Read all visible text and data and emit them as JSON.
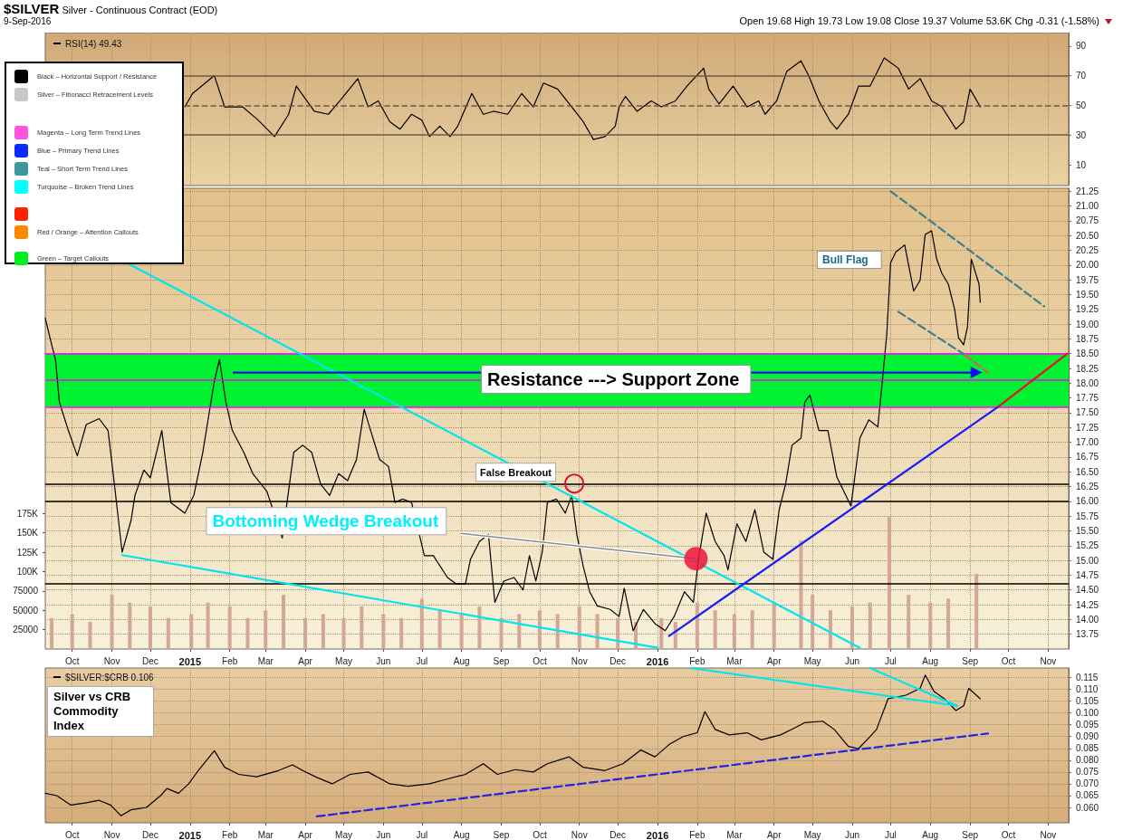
{
  "chart_data": [
    {
      "type": "line",
      "title": "$SILVER Silver - Continuous Contract (EOD)",
      "subtitle": "9-Sep-2016",
      "annotations": [
        "Open 19.68 High 19.73 Low 19.08 Close 19.37 Volume 53.6K Chg -0.31 (-1.58%)"
      ],
      "series": [
        {
          "name": "RSI(14) 49.43",
          "color": "#000000",
          "x": [
            "2014-12-28",
            "2015-01-03",
            "2015-01-20",
            "2015-01-28",
            "2015-02-11",
            "2015-02-22",
            "2015-03-08",
            "2015-03-19",
            "2015-03-25",
            "2015-04-08",
            "2015-04-19",
            "2015-04-28",
            "2015-05-12",
            "2015-05-20",
            "2015-05-28",
            "2015-06-06",
            "2015-06-14",
            "2015-06-23",
            "2015-07-01",
            "2015-07-07",
            "2015-07-15",
            "2015-07-23",
            "2015-07-29",
            "2015-08-09",
            "2015-08-18",
            "2015-08-26",
            "2015-09-06",
            "2015-09-17",
            "2015-09-26",
            "2015-10-04",
            "2015-10-15",
            "2015-10-26",
            "2015-11-04",
            "2015-11-12",
            "2015-11-21",
            "2015-11-29",
            "2015-12-02",
            "2015-12-07",
            "2015-12-16",
            "2015-12-27",
            "2016-01-04",
            "2016-01-15",
            "2016-01-24",
            "2016-02-06",
            "2016-02-10",
            "2016-02-18",
            "2016-02-29",
            "2016-03-11",
            "2016-03-20",
            "2016-03-25",
            "2016-04-03",
            "2016-04-11",
            "2016-04-22",
            "2016-04-28",
            "2016-05-06",
            "2016-05-15",
            "2016-05-20",
            "2016-05-29",
            "2016-06-06",
            "2016-06-15",
            "2016-06-26",
            "2016-07-07",
            "2016-07-15",
            "2016-07-24",
            "2016-08-02",
            "2016-08-10",
            "2016-08-21",
            "2016-08-27",
            "2016-09-01",
            "2016-09-09"
          ],
          "values": [
            49,
            58,
            70,
            49,
            49,
            41,
            29,
            44,
            63,
            46,
            44,
            53,
            68,
            49,
            53,
            39,
            34,
            44,
            40,
            29,
            36,
            29,
            36,
            58,
            44,
            46,
            44,
            58,
            49,
            65,
            61,
            49,
            39,
            27,
            29,
            36,
            49,
            56,
            46,
            53,
            49,
            53,
            63,
            75,
            61,
            51,
            63,
            49,
            53,
            44,
            53,
            73,
            80,
            70,
            53,
            39,
            34,
            44,
            63,
            63,
            82,
            75,
            61,
            68,
            53,
            49,
            34,
            39,
            61,
            49
          ]
        }
      ],
      "xlim": [
        "2014-09-10",
        "2016-11-17"
      ],
      "xticks": [
        {
          "value": "2014-10-01",
          "label": null
        },
        {
          "value": "2014-11-01",
          "label": null
        },
        {
          "value": "2014-12-01",
          "label": null
        },
        {
          "value": "2015-01-01",
          "label": null
        },
        {
          "value": "2015-02-01",
          "label": null
        },
        {
          "value": "2015-03-01",
          "label": null
        },
        {
          "value": "2015-04-01",
          "label": null
        },
        {
          "value": "2015-05-01",
          "label": null
        },
        {
          "value": "2015-06-01",
          "label": null
        },
        {
          "value": "2015-07-01",
          "label": null
        },
        {
          "value": "2015-08-01",
          "label": null
        },
        {
          "value": "2015-09-01",
          "label": null
        },
        {
          "value": "2015-10-01",
          "label": null
        },
        {
          "value": "2015-11-01",
          "label": null
        },
        {
          "value": "2015-12-01",
          "label": null
        },
        {
          "value": "2016-01-01",
          "label": null
        },
        {
          "value": "2016-02-01",
          "label": null
        },
        {
          "value": "2016-03-01",
          "label": null
        },
        {
          "value": "2016-04-01",
          "label": null
        },
        {
          "value": "2016-05-01",
          "label": null
        },
        {
          "value": "2016-06-01",
          "label": null
        },
        {
          "value": "2016-07-01",
          "label": null
        },
        {
          "value": "2016-08-01",
          "label": null
        },
        {
          "value": "2016-09-01",
          "label": null
        },
        {
          "value": "2016-10-01",
          "label": null
        },
        {
          "value": "2016-11-01",
          "label": null
        }
      ],
      "ylim": [
        -4,
        99
      ],
      "yticks": [
        10,
        30,
        50,
        70,
        90
      ],
      "ref_lines": [
        {
          "axis": "y",
          "value": 70,
          "color": "#6a5a48"
        },
        {
          "axis": "y",
          "value": 30,
          "color": "#6a5a48"
        },
        {
          "axis": "y",
          "value": 50,
          "color": "#6a5a48",
          "line_style": "dashed"
        }
      ],
      "grid": "x",
      "legend": "top left",
      "marker": "none",
      "tick_labels": "y"
    },
    {
      "type": "line",
      "annotations": [
        "Resistance ---> Support Zone",
        "Bull Flag",
        {
          "text": "False Breakout",
          "x": "2015-10-28",
          "y": 16.3
        },
        {
          "text": "Bottoming Wedge Breakout",
          "x": "2016-01-31",
          "y": 15.03
        }
      ],
      "series": [
        {
          "color": "#000000",
          "x": [
            "2014-09-10",
            "2014-09-15",
            "2014-09-18",
            "2014-09-21",
            "2014-09-28",
            "2014-10-05",
            "2014-10-12",
            "2014-10-22",
            "2014-10-29",
            "2014-11-02",
            "2014-11-09",
            "2014-11-16",
            "2014-11-19",
            "2014-11-26",
            "2014-12-01",
            "2014-12-10",
            "2014-12-17",
            "2014-12-28",
            "2015-01-04",
            "2015-01-11",
            "2015-01-20",
            "2015-01-24",
            "2015-01-29",
            "2015-02-03",
            "2015-02-12",
            "2015-02-19",
            "2015-03-02",
            "2015-03-14",
            "2015-03-23",
            "2015-03-30",
            "2015-04-06",
            "2015-04-13",
            "2015-04-20",
            "2015-04-27",
            "2015-05-04",
            "2015-05-11",
            "2015-05-17",
            "2015-05-22",
            "2015-05-29",
            "2015-06-05",
            "2015-06-10",
            "2015-06-16",
            "2015-06-23",
            "2015-07-03",
            "2015-07-10",
            "2015-07-21",
            "2015-07-28",
            "2015-08-04",
            "2015-08-08",
            "2015-08-15",
            "2015-08-22",
            "2015-08-27",
            "2015-09-03",
            "2015-09-11",
            "2015-09-18",
            "2015-09-23",
            "2015-09-28",
            "2015-10-03",
            "2015-10-07",
            "2015-10-14",
            "2015-10-21",
            "2015-10-26",
            "2015-10-30",
            "2015-11-04",
            "2015-11-09",
            "2015-11-15",
            "2015-11-25",
            "2015-12-02",
            "2015-12-06",
            "2015-12-13",
            "2015-12-21",
            "2015-12-30",
            "2016-01-07",
            "2016-01-14",
            "2016-01-22",
            "2016-01-29",
            "2016-02-02",
            "2016-02-08",
            "2016-02-15",
            "2016-02-22",
            "2016-02-25",
            "2016-03-03",
            "2016-03-10",
            "2016-03-17",
            "2016-03-24",
            "2016-03-31",
            "2016-04-05",
            "2016-04-10",
            "2016-04-15",
            "2016-04-22",
            "2016-04-25",
            "2016-04-29",
            "2016-05-06",
            "2016-05-13",
            "2016-05-20",
            "2016-05-27",
            "2016-05-31",
            "2016-06-03",
            "2016-06-07",
            "2016-06-14",
            "2016-06-21",
            "2016-06-24",
            "2016-06-28",
            "2016-07-01",
            "2016-07-05",
            "2016-07-12",
            "2016-07-19",
            "2016-07-24",
            "2016-07-28",
            "2016-08-02",
            "2016-08-06",
            "2016-08-10",
            "2016-08-15",
            "2016-08-20",
            "2016-08-23",
            "2016-08-27",
            "2016-08-30",
            "2016-09-02",
            "2016-09-08",
            "2016-09-09"
          ],
          "values": [
            19.1,
            18.65,
            18.4,
            17.68,
            17.2,
            16.77,
            17.3,
            17.4,
            17.2,
            16.47,
            15.14,
            15.68,
            16.1,
            16.53,
            16.4,
            17.2,
            15.98,
            15.8,
            16.1,
            16.83,
            18.04,
            18.4,
            17.68,
            17.2,
            16.83,
            16.47,
            16.17,
            15.38,
            16.83,
            16.95,
            16.83,
            16.29,
            16.1,
            16.47,
            16.35,
            16.71,
            17.56,
            17.2,
            16.71,
            16.59,
            15.98,
            16.04,
            15.98,
            15.08,
            15.08,
            14.71,
            14.6,
            14.6,
            15.02,
            15.32,
            15.44,
            14.29,
            14.65,
            14.71,
            14.5,
            15.08,
            14.65,
            15.14,
            15.98,
            16.04,
            15.8,
            16.1,
            15.44,
            14.9,
            14.47,
            14.23,
            14.17,
            14.05,
            14.53,
            13.81,
            14.17,
            13.93,
            13.81,
            14.05,
            14.47,
            14.29,
            15.02,
            15.8,
            15.32,
            15.08,
            14.84,
            15.62,
            15.32,
            15.86,
            15.14,
            15.02,
            15.86,
            16.29,
            16.95,
            17.07,
            17.68,
            17.8,
            17.2,
            17.2,
            16.41,
            16.1,
            15.92,
            16.41,
            17.07,
            17.38,
            17.26,
            17.92,
            18.83,
            20.04,
            20.22,
            20.34,
            19.56,
            19.74,
            20.52,
            20.58,
            20.1,
            19.86,
            19.68,
            19.25,
            18.77,
            18.65,
            18.95,
            20.1,
            19.68,
            19.37
          ]
        },
        {
          "type": "bar",
          "axis": "y2",
          "color": "#d2a796",
          "x": [
            "2014-09-15",
            "2014-10-01",
            "2014-10-15",
            "2014-11-01",
            "2014-11-15",
            "2014-12-01",
            "2014-12-15",
            "2015-01-02",
            "2015-01-15",
            "2015-02-01",
            "2015-02-15",
            "2015-03-01",
            "2015-03-15",
            "2015-04-01",
            "2015-04-15",
            "2015-05-01",
            "2015-05-15",
            "2015-06-01",
            "2015-06-15",
            "2015-07-01",
            "2015-07-15",
            "2015-08-01",
            "2015-08-15",
            "2015-09-01",
            "2015-09-15",
            "2015-10-01",
            "2015-10-15",
            "2015-11-01",
            "2015-11-15",
            "2015-12-01",
            "2015-12-15",
            "2016-01-04",
            "2016-01-15",
            "2016-02-01",
            "2016-02-15",
            "2016-03-01",
            "2016-03-15",
            "2016-04-01",
            "2016-04-22",
            "2016-05-01",
            "2016-05-15",
            "2016-06-01",
            "2016-06-15",
            "2016-06-30",
            "2016-07-15",
            "2016-08-01",
            "2016-08-15",
            "2016-09-06"
          ],
          "values": [
            40000,
            45000,
            35000,
            70000,
            60000,
            55000,
            40000,
            45000,
            60000,
            55000,
            40000,
            50000,
            70000,
            40000,
            45000,
            40000,
            55000,
            45000,
            40000,
            65000,
            50000,
            45000,
            55000,
            40000,
            45000,
            50000,
            45000,
            55000,
            45000,
            40000,
            35000,
            40000,
            35000,
            60000,
            50000,
            45000,
            50000,
            60000,
            140000,
            70000,
            50000,
            55000,
            60000,
            170000,
            70000,
            60000,
            65000,
            97000
          ]
        },
        {
          "color": "#00e5ee",
          "x": [
            "2014-11-15",
            "2016-06-07"
          ],
          "values": [
            20.01,
            13.52
          ]
        },
        {
          "color": "#00e5ee",
          "x": [
            "2014-11-09",
            "2016-01-01"
          ],
          "values": [
            15.09,
            13.52
          ]
        },
        {
          "color": "#1a1aff",
          "x": [
            "2016-01-10",
            "2016-09-23"
          ],
          "values": [
            13.72,
            17.6
          ]
        },
        {
          "color": "#e8102a",
          "x": [
            "2016-09-23",
            "2016-11-16"
          ],
          "values": [
            17.6,
            18.5
          ]
        },
        {
          "color": "#3d7f8f",
          "line_style": "dashed",
          "x": [
            "2016-07-01",
            "2016-10-29"
          ],
          "values": [
            21.25,
            19.3
          ]
        },
        {
          "color": "#3d7f8f",
          "line_style": "dashed",
          "x": [
            "2016-07-07",
            "2016-08-28"
          ],
          "values": [
            19.21,
            18.48
          ]
        },
        {
          "color": "#e8506a",
          "line_style": "dashed",
          "x": [
            "2016-08-28",
            "2016-09-15"
          ],
          "values": [
            18.48,
            18.18
          ]
        },
        {
          "color": "#1010ee",
          "marker": "triangle",
          "x": [
            "2015-02-04",
            "2016-09-06"
          ],
          "values": [
            18.18,
            18.18
          ]
        }
      ],
      "xlim": [
        "2014-09-10",
        "2016-11-17"
      ],
      "xticks": [
        {
          "value": "2014-10-01",
          "label": "Oct"
        },
        {
          "value": "2014-11-01",
          "label": "Nov"
        },
        {
          "value": "2014-12-01",
          "label": "Dec"
        },
        {
          "value": "2015-01-01",
          "label": "2015"
        },
        {
          "value": "2015-02-01",
          "label": "Feb"
        },
        {
          "value": "2015-03-01",
          "label": "Mar"
        },
        {
          "value": "2015-04-01",
          "label": "Apr"
        },
        {
          "value": "2015-05-01",
          "label": "May"
        },
        {
          "value": "2015-06-01",
          "label": "Jun"
        },
        {
          "value": "2015-07-01",
          "label": "Jul"
        },
        {
          "value": "2015-08-01",
          "label": "Aug"
        },
        {
          "value": "2015-09-01",
          "label": "Sep"
        },
        {
          "value": "2015-10-01",
          "label": "Oct"
        },
        {
          "value": "2015-11-01",
          "label": "Nov"
        },
        {
          "value": "2015-12-01",
          "label": "Dec"
        },
        {
          "value": "2016-01-01",
          "label": "2016"
        },
        {
          "value": "2016-02-01",
          "label": "Feb"
        },
        {
          "value": "2016-03-01",
          "label": "Mar"
        },
        {
          "value": "2016-04-01",
          "label": "Apr"
        },
        {
          "value": "2016-05-01",
          "label": "May"
        },
        {
          "value": "2016-06-01",
          "label": "Jun"
        },
        {
          "value": "2016-07-01",
          "label": "Jul"
        },
        {
          "value": "2016-08-01",
          "label": "Aug"
        },
        {
          "value": "2016-09-01",
          "label": "Sep"
        },
        {
          "value": "2016-10-01",
          "label": "Oct"
        },
        {
          "value": "2016-11-01",
          "label": "Nov"
        }
      ],
      "ylim": [
        13.5,
        21.3
      ],
      "yticks": [
        13.75,
        {
          "value": 14,
          "label": "14.00"
        },
        14.25,
        {
          "value": 14.5,
          "label": "14.50"
        },
        14.75,
        {
          "value": 15,
          "label": "15.00"
        },
        15.25,
        {
          "value": 15.5,
          "label": "15.50"
        },
        15.75,
        {
          "value": 16,
          "label": "16.00"
        },
        16.25,
        {
          "value": 16.5,
          "label": "16.50"
        },
        16.75,
        {
          "value": 17,
          "label": "17.00"
        },
        17.25,
        {
          "value": 17.5,
          "label": "17.50"
        },
        17.75,
        {
          "value": 18,
          "label": "18.00"
        },
        18.25,
        {
          "value": 18.5,
          "label": "18.50"
        },
        18.75,
        {
          "value": 19,
          "label": "19.00"
        },
        19.25,
        {
          "value": 19.5,
          "label": "19.50"
        },
        19.75,
        {
          "value": 20,
          "label": "20.00"
        },
        20.25,
        {
          "value": 20.5,
          "label": "20.50"
        },
        20.75,
        {
          "value": 21,
          "label": "21.00"
        },
        21.25
      ],
      "y2lim": [
        0,
        595000
      ],
      "y2ticks": [
        25000,
        50000,
        75000,
        {
          "value": 100000,
          "label": "100K"
        },
        {
          "value": 125000,
          "label": "125K"
        },
        {
          "value": 150000,
          "label": "150K"
        },
        {
          "value": 175000,
          "label": "175K"
        }
      ],
      "bands": [
        {
          "axis": "y",
          "from": 17.6,
          "to": 18.5,
          "color": "#00f230"
        }
      ],
      "ref_lines": [
        {
          "axis": "y",
          "value": 16.3,
          "color": "#000000"
        },
        {
          "axis": "y",
          "value": 16.0,
          "color": "#000000"
        },
        {
          "axis": "y",
          "value": 14.6,
          "color": "#000000"
        },
        {
          "axis": "y",
          "value": 18.5,
          "color": "#ff00ff"
        },
        {
          "axis": "y",
          "value": 18.05,
          "color": "#ff00ff"
        },
        {
          "axis": "y",
          "value": 17.6,
          "color": "#ff00ff"
        }
      ],
      "grid": true,
      "marker": "none"
    },
    {
      "type": "line",
      "annotations": [
        "Silver vs CRB Commodity Index"
      ],
      "series": [
        {
          "name": "$SILVER:$CRB 0.106",
          "color": "#000000",
          "x": [
            "2014-09-10",
            "2014-09-19",
            "2014-09-30",
            "2014-10-12",
            "2014-10-22",
            "2014-10-31",
            "2014-11-08",
            "2014-11-16",
            "2014-11-28",
            "2014-12-09",
            "2014-12-14",
            "2014-12-23",
            "2014-12-31",
            "2015-01-08",
            "2015-01-20",
            "2015-01-28",
            "2015-02-08",
            "2015-02-22",
            "2015-03-11",
            "2015-03-22",
            "2015-03-30",
            "2015-04-10",
            "2015-04-22",
            "2015-05-06",
            "2015-05-20",
            "2015-06-06",
            "2015-06-20",
            "2015-07-07",
            "2015-07-18",
            "2015-08-04",
            "2015-08-18",
            "2015-08-29",
            "2015-09-12",
            "2015-09-26",
            "2015-10-07",
            "2015-10-24",
            "2015-11-04",
            "2015-11-21",
            "2015-12-05",
            "2015-12-19",
            "2015-12-30",
            "2016-01-10",
            "2016-01-21",
            "2016-02-01",
            "2016-02-07",
            "2016-02-15",
            "2016-02-26",
            "2016-03-11",
            "2016-03-22",
            "2016-04-06",
            "2016-04-17",
            "2016-04-25",
            "2016-05-09",
            "2016-05-18",
            "2016-05-29",
            "2016-06-06",
            "2016-06-15",
            "2016-06-20",
            "2016-06-29",
            "2016-07-13",
            "2016-07-24",
            "2016-07-28",
            "2016-08-04",
            "2016-08-12",
            "2016-08-21",
            "2016-08-27",
            "2016-08-31",
            "2016-09-09"
          ],
          "values": [
            0.066,
            0.065,
            0.061,
            0.062,
            0.063,
            0.061,
            0.0565,
            0.059,
            0.06,
            0.065,
            0.068,
            0.066,
            0.07,
            0.076,
            0.084,
            0.077,
            0.074,
            0.073,
            0.0756,
            0.078,
            0.0756,
            0.0727,
            0.07,
            0.074,
            0.075,
            0.07,
            0.069,
            0.07,
            0.0716,
            0.074,
            0.0785,
            0.074,
            0.076,
            0.075,
            0.0785,
            0.0814,
            0.077,
            0.0756,
            0.0785,
            0.0843,
            0.0814,
            0.0866,
            0.09,
            0.0916,
            0.1005,
            0.093,
            0.0907,
            0.0916,
            0.0886,
            0.0907,
            0.0936,
            0.0959,
            0.0965,
            0.093,
            0.0858,
            0.0849,
            0.09,
            0.093,
            0.106,
            0.1075,
            0.1104,
            0.116,
            0.109,
            0.106,
            0.101,
            0.103,
            0.1104,
            0.106
          ]
        },
        {
          "color": "#2424e0",
          "line_style": "dashed",
          "x": [
            "2015-04-10",
            "2016-09-15"
          ],
          "values": [
            0.0562,
            0.0913
          ]
        },
        {
          "color": "#00e5ee",
          "x": [
            "2016-01-27",
            "2016-08-22"
          ],
          "values": [
            0.119,
            0.103
          ]
        },
        {
          "color": "#00e5ee",
          "x": [
            "2016-06-15",
            "2016-08-22"
          ],
          "values": [
            0.119,
            0.103
          ]
        }
      ],
      "xlim": [
        "2014-09-10",
        "2016-11-17"
      ],
      "xticks": [
        {
          "value": "2014-10-01",
          "label": "Oct"
        },
        {
          "value": "2014-11-01",
          "label": "Nov"
        },
        {
          "value": "2014-12-01",
          "label": "Dec"
        },
        {
          "value": "2015-01-01",
          "label": "2015"
        },
        {
          "value": "2015-02-01",
          "label": "Feb"
        },
        {
          "value": "2015-03-01",
          "label": "Mar"
        },
        {
          "value": "2015-04-01",
          "label": "Apr"
        },
        {
          "value": "2015-05-01",
          "label": "May"
        },
        {
          "value": "2015-06-01",
          "label": "Jun"
        },
        {
          "value": "2015-07-01",
          "label": "Jul"
        },
        {
          "value": "2015-08-01",
          "label": "Aug"
        },
        {
          "value": "2015-09-01",
          "label": "Sep"
        },
        {
          "value": "2015-10-01",
          "label": "Oct"
        },
        {
          "value": "2015-11-01",
          "label": "Nov"
        },
        {
          "value": "2015-12-01",
          "label": "Dec"
        },
        {
          "value": "2016-01-01",
          "label": "2016"
        },
        {
          "value": "2016-02-01",
          "label": "Feb"
        },
        {
          "value": "2016-03-01",
          "label": "Mar"
        },
        {
          "value": "2016-04-01",
          "label": "Apr"
        },
        {
          "value": "2016-05-01",
          "label": "May"
        },
        {
          "value": "2016-06-01",
          "label": "Jun"
        },
        {
          "value": "2016-07-01",
          "label": "Jul"
        },
        {
          "value": "2016-08-01",
          "label": "Aug"
        },
        {
          "value": "2016-09-01",
          "label": "Sep"
        },
        {
          "value": "2016-10-01",
          "label": "Oct"
        },
        {
          "value": "2016-11-01",
          "label": "Nov"
        }
      ],
      "ylim": [
        0.0535,
        0.119
      ],
      "yticks": [
        {
          "value": 0.06,
          "label": "0.060"
        },
        {
          "value": 0.065,
          "label": "0.065"
        },
        {
          "value": 0.07,
          "label": "0.070"
        },
        {
          "value": 0.075,
          "label": "0.075"
        },
        {
          "value": 0.08,
          "label": "0.080"
        },
        {
          "value": 0.085,
          "label": "0.085"
        },
        {
          "value": 0.09,
          "label": "0.090"
        },
        {
          "value": 0.095,
          "label": "0.095"
        },
        {
          "value": 0.1,
          "label": "0.100"
        },
        {
          "value": 0.105,
          "label": "0.105"
        },
        {
          "value": 0.11,
          "label": "0.110"
        },
        {
          "value": 0.115,
          "label": "0.115"
        }
      ],
      "grid": true,
      "legend": "top left",
      "marker": "none"
    },
    {
      "type": "other",
      "annotations": [
        "Black – Horizontal Support / Resistance",
        "Silver – Fibonacci Retracement Levels",
        "Magenta – Long Term Trend Lines",
        "Blue – Primary Trend Lines",
        "Teal – Short Term Trend Lines",
        "Turquoise – Broken Trend Lines",
        "Red / Orange – Attention Callouts",
        "Green – Target Callouts"
      ]
    }
  ]
}
